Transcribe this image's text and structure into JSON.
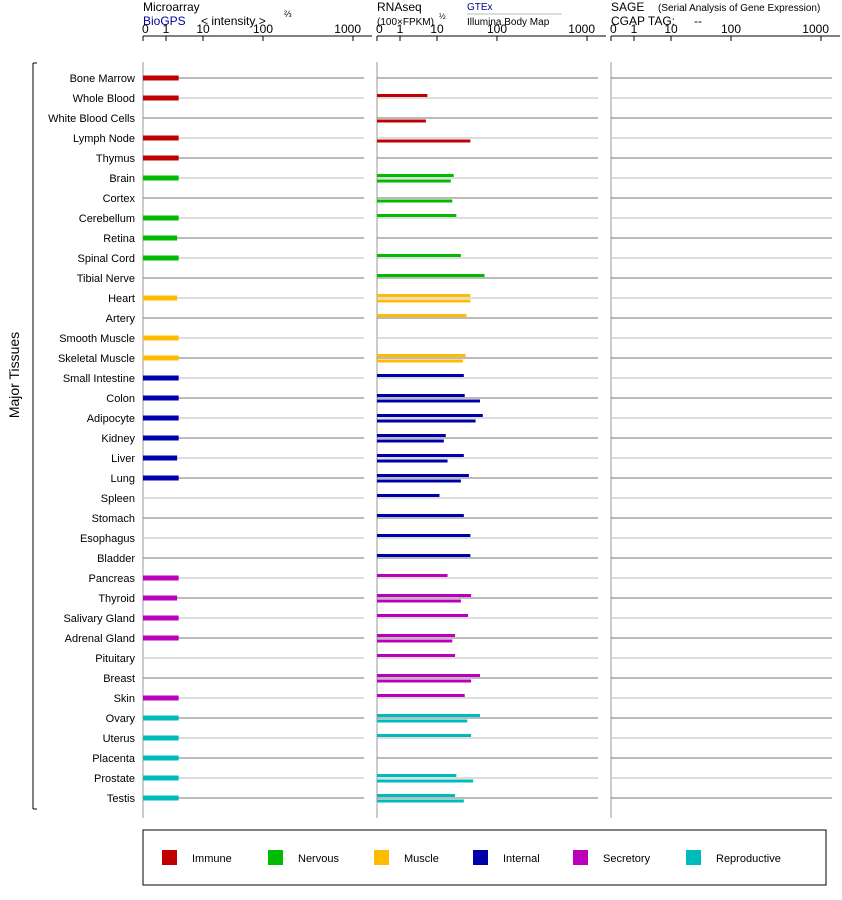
{
  "panels": {
    "microarray": {
      "title": "Microarray",
      "source": "BioGPS",
      "scale_label": "< intensity >",
      "scale_exponent": "⅔",
      "ticks": [
        "0",
        "1",
        "10",
        "100",
        "1000"
      ]
    },
    "rnaseq": {
      "title": "RNAseq",
      "unit": "(100×FPKM)",
      "unit_exponent": "½",
      "source1": "GTEx",
      "source2": "Illumina Body Map",
      "ticks": [
        "0",
        "1",
        "10",
        "100",
        "1000"
      ]
    },
    "sage": {
      "title": "SAGE",
      "subtitle": "(Serial Analysis of Gene Expression)",
      "tag_label": "CGAP TAG:",
      "tag_value": "--",
      "ticks": [
        "0",
        "1",
        "10",
        "100",
        "1000"
      ]
    }
  },
  "group_label": "Major Tissues",
  "legend": [
    {
      "name": "Immune",
      "color": "#c00000"
    },
    {
      "name": "Nervous",
      "color": "#00bb00"
    },
    {
      "name": "Muscle",
      "color": "#ffbb00"
    },
    {
      "name": "Internal",
      "color": "#0000aa"
    },
    {
      "name": "Secretory",
      "color": "#bb00bb"
    },
    {
      "name": "Reproductive",
      "color": "#00bbbb"
    }
  ],
  "chart_data": {
    "type": "bar",
    "axis_scale": "nonlinear (0, 1, 10, 100, 1000)",
    "tissues": [
      {
        "name": "Bone Marrow",
        "category": "Immune",
        "microarray": 2.2,
        "gtex": null,
        "ibm": null
      },
      {
        "name": "Whole Blood",
        "category": "Immune",
        "microarray": 2.2,
        "gtex": 5.5,
        "ibm": null
      },
      {
        "name": "White Blood Cells",
        "category": "Immune",
        "microarray": null,
        "gtex": null,
        "ibm": 5
      },
      {
        "name": "Lymph Node",
        "category": "Immune",
        "microarray": 2.2,
        "gtex": null,
        "ibm": 36
      },
      {
        "name": "Thymus",
        "category": "Immune",
        "microarray": 2.2,
        "gtex": null,
        "ibm": null
      },
      {
        "name": "Brain",
        "category": "Nervous",
        "microarray": 2.2,
        "gtex": 19,
        "ibm": 17
      },
      {
        "name": "Cortex",
        "category": "Nervous",
        "microarray": null,
        "gtex": null,
        "ibm": 18
      },
      {
        "name": "Cerebellum",
        "category": "Nervous",
        "microarray": 2.2,
        "gtex": 21,
        "ibm": null
      },
      {
        "name": "Retina",
        "category": "Nervous",
        "microarray": 2.0,
        "gtex": null,
        "ibm": null
      },
      {
        "name": "Spinal Cord",
        "category": "Nervous",
        "microarray": 2.2,
        "gtex": 25,
        "ibm": null
      },
      {
        "name": "Tibial Nerve",
        "category": "Nervous",
        "microarray": null,
        "gtex": 62,
        "ibm": null
      },
      {
        "name": "Heart",
        "category": "Muscle",
        "microarray": 2.0,
        "gtex": 36,
        "ibm": 36
      },
      {
        "name": "Artery",
        "category": "Muscle",
        "microarray": null,
        "gtex": 31,
        "ibm": null
      },
      {
        "name": "Smooth Muscle",
        "category": "Muscle",
        "microarray": 2.2,
        "gtex": null,
        "ibm": null
      },
      {
        "name": "Skeletal Muscle",
        "category": "Muscle",
        "microarray": 2.2,
        "gtex": 30,
        "ibm": 27
      },
      {
        "name": "Small Intestine",
        "category": "Internal",
        "microarray": 2.2,
        "gtex": 28,
        "ibm": null
      },
      {
        "name": "Colon",
        "category": "Internal",
        "microarray": 2.2,
        "gtex": 29,
        "ibm": 52
      },
      {
        "name": "Adipocyte",
        "category": "Internal",
        "microarray": 2.2,
        "gtex": 58,
        "ibm": 44
      },
      {
        "name": "Kidney",
        "category": "Internal",
        "microarray": 2.2,
        "gtex": 14,
        "ibm": 13
      },
      {
        "name": "Liver",
        "category": "Internal",
        "microarray": 2.0,
        "gtex": 28,
        "ibm": 15
      },
      {
        "name": "Lung",
        "category": "Internal",
        "microarray": 2.2,
        "gtex": 34,
        "ibm": 25
      },
      {
        "name": "Spleen",
        "category": "Internal",
        "microarray": null,
        "gtex": 11,
        "ibm": null
      },
      {
        "name": "Stomach",
        "category": "Internal",
        "microarray": null,
        "gtex": 28,
        "ibm": null
      },
      {
        "name": "Esophagus",
        "category": "Internal",
        "microarray": null,
        "gtex": 36,
        "ibm": null
      },
      {
        "name": "Bladder",
        "category": "Internal",
        "microarray": null,
        "gtex": 36,
        "ibm": null
      },
      {
        "name": "Pancreas",
        "category": "Secretory",
        "microarray": 2.2,
        "gtex": 15,
        "ibm": null
      },
      {
        "name": "Thyroid",
        "category": "Secretory",
        "microarray": 2.0,
        "gtex": 37,
        "ibm": 25
      },
      {
        "name": "Salivary Gland",
        "category": "Secretory",
        "microarray": 2.2,
        "gtex": 33,
        "ibm": null
      },
      {
        "name": "Adrenal Gland",
        "category": "Secretory",
        "microarray": 2.2,
        "gtex": 20,
        "ibm": 18
      },
      {
        "name": "Pituitary",
        "category": "Secretory",
        "microarray": null,
        "gtex": 20,
        "ibm": null
      },
      {
        "name": "Breast",
        "category": "Secretory",
        "microarray": null,
        "gtex": 52,
        "ibm": 37
      },
      {
        "name": "Skin",
        "category": "Secretory",
        "microarray": 2.2,
        "gtex": 29,
        "ibm": null
      },
      {
        "name": "Ovary",
        "category": "Reproductive",
        "microarray": 2.2,
        "gtex": 52,
        "ibm": 32
      },
      {
        "name": "Uterus",
        "category": "Reproductive",
        "microarray": 2.2,
        "gtex": 37,
        "ibm": null
      },
      {
        "name": "Placenta",
        "category": "Reproductive",
        "microarray": 2.2,
        "gtex": null,
        "ibm": null
      },
      {
        "name": "Prostate",
        "category": "Reproductive",
        "microarray": 2.2,
        "gtex": 21,
        "ibm": 40
      },
      {
        "name": "Testis",
        "category": "Reproductive",
        "microarray": 2.2,
        "gtex": 20,
        "ibm": 28
      }
    ]
  }
}
